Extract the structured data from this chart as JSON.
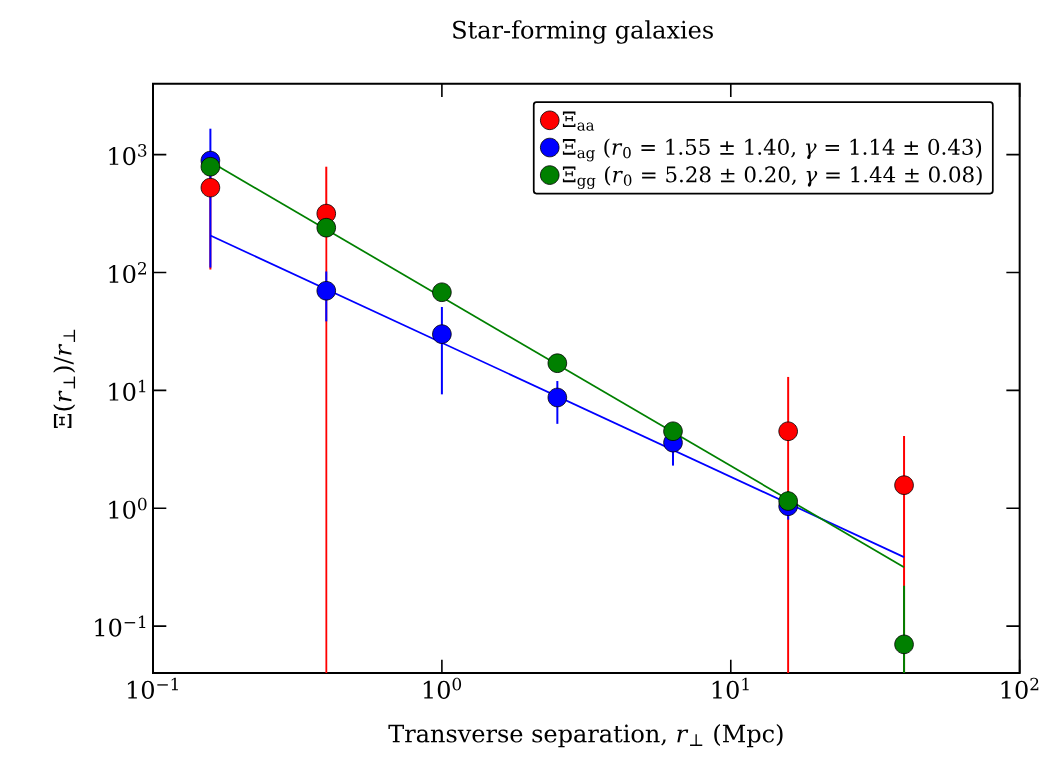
{
  "chart_data": {
    "type": "scatter",
    "title": "Star-forming galaxies",
    "xlabel": "Transverse separation, *r*$_{⊥}$ (Mpc)",
    "ylabel": "Ξ(*r*$_{⊥}$)/*r*$_{⊥}$",
    "log": "xy",
    "marker": "circle",
    "legend": "top right",
    "grid": false,
    "xlim": [
      0.1,
      100
    ],
    "ylim": [
      0.04,
      4000
    ],
    "xticks": [
      {
        "value": 0.1,
        "label": "10$^{−1}$"
      },
      {
        "value": 1,
        "label": "10$^{0}$"
      },
      {
        "value": 10,
        "label": "10$^{1}$"
      },
      {
        "value": 100,
        "label": "10$^{2}$"
      }
    ],
    "yticks": [
      {
        "value": 0.1,
        "label": "10$^{−1}$"
      },
      {
        "value": 1,
        "label": "10$^{0}$"
      },
      {
        "value": 10,
        "label": "10$^{1}$"
      },
      {
        "value": 100,
        "label": "10$^{2}$"
      },
      {
        "value": 1000,
        "label": "10$^{3}$"
      }
    ],
    "series": [
      {
        "name": "Ξ$_{aa}$",
        "color": "#ff0000",
        "x": [
          0.158,
          0.398,
          15.8,
          39.8
        ],
        "values": [
          525,
          316,
          4.5,
          1.57
        ],
        "errors": [
          [
            106,
            945
          ],
          [
            0.04,
            790
          ],
          [
            0.04,
            13
          ],
          [
            0.04,
            4.1
          ]
        ]
      },
      {
        "name": "Ξ$_{ag}$ (*r*$_{0}$ = 1.55 ± 1.40, *γ* = 1.14 ± 0.43)",
        "color": "#0000ff",
        "x": [
          0.158,
          0.398,
          1.0,
          2.51,
          6.31,
          15.8
        ],
        "values": [
          890,
          70,
          30,
          8.7,
          3.6,
          1.04
        ],
        "errors": [
          [
            110,
            1660
          ],
          [
            38.5,
            102
          ],
          [
            9.25,
            51
          ],
          [
            5.2,
            12
          ],
          [
            2.3,
            5.0
          ],
          [
            0.8,
            1.3
          ]
        ]
      },
      {
        "name": "Ξ$_{gg}$ (*r*$_{0}$ = 5.28 ± 0.20, *γ* = 1.44 ± 0.08)",
        "color": "#008000",
        "x": [
          0.158,
          0.398,
          1.0,
          2.51,
          6.31,
          15.8,
          39.8
        ],
        "values": [
          790,
          240,
          68,
          17,
          4.5,
          1.15,
          0.07
        ],
        "errors": [
          null,
          null,
          null,
          null,
          null,
          [
            0.9,
            1.4
          ],
          [
            0.04,
            0.22
          ]
        ]
      },
      {
        "type": "line",
        "marker": "none",
        "color": "#0000ff",
        "x": [
          0.158,
          39.8
        ],
        "values": [
          206,
          0.385
        ]
      },
      {
        "type": "line",
        "marker": "none",
        "color": "#008000",
        "x": [
          0.158,
          39.8
        ],
        "values": [
          870,
          0.316
        ]
      }
    ]
  }
}
